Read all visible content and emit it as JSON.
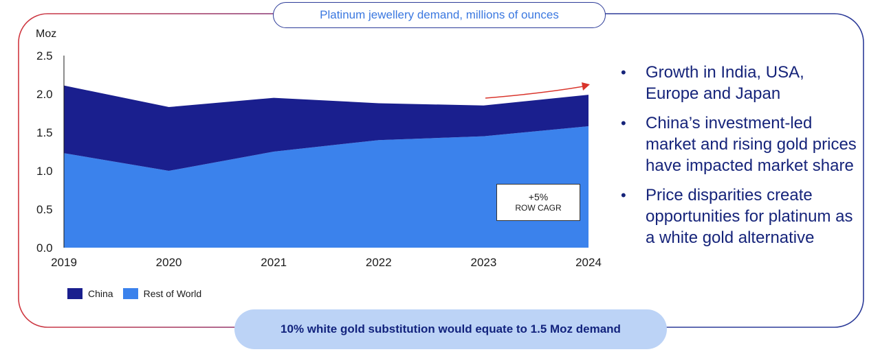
{
  "colors": {
    "china": "#1a1f8e",
    "rest_of_world": "#3b82ec",
    "frame_left": "#d0373f",
    "frame_right": "#2b3a98",
    "arrow": "#d9342b"
  },
  "title": "Platinum jewellery demand, millions of ounces",
  "chart_data": {
    "type": "area",
    "stacked": true,
    "title": "Platinum jewellery demand, millions of ounces",
    "ylabel": "Moz",
    "xlabel": "",
    "x": [
      "2019",
      "2020",
      "2021",
      "2022",
      "2023",
      "2024"
    ],
    "series": [
      {
        "name": "Rest of World",
        "values": [
          1.23,
          1.0,
          1.25,
          1.4,
          1.45,
          1.58
        ]
      },
      {
        "name": "China",
        "values": [
          0.88,
          0.83,
          0.7,
          0.48,
          0.4,
          0.41
        ]
      }
    ],
    "ylim": [
      0,
      2.5
    ],
    "yticks": [
      "0.0",
      "0.5",
      "1.0",
      "1.5",
      "2.0",
      "2.5"
    ],
    "legend": [
      "China",
      "Rest of World"
    ],
    "legend_position": "bottom-left",
    "annotation": {
      "value": "+5%",
      "label": "ROW CAGR"
    }
  },
  "bullets": [
    "Growth in India, USA, Europe and Japan",
    "China’s investment-led market and rising gold prices have impacted market share",
    "Price disparities create opportunities for platinum as a white gold alternative"
  ],
  "bullet_symbol": "•",
  "footer": "10% white gold substitution would equate to 1.5 Moz demand"
}
